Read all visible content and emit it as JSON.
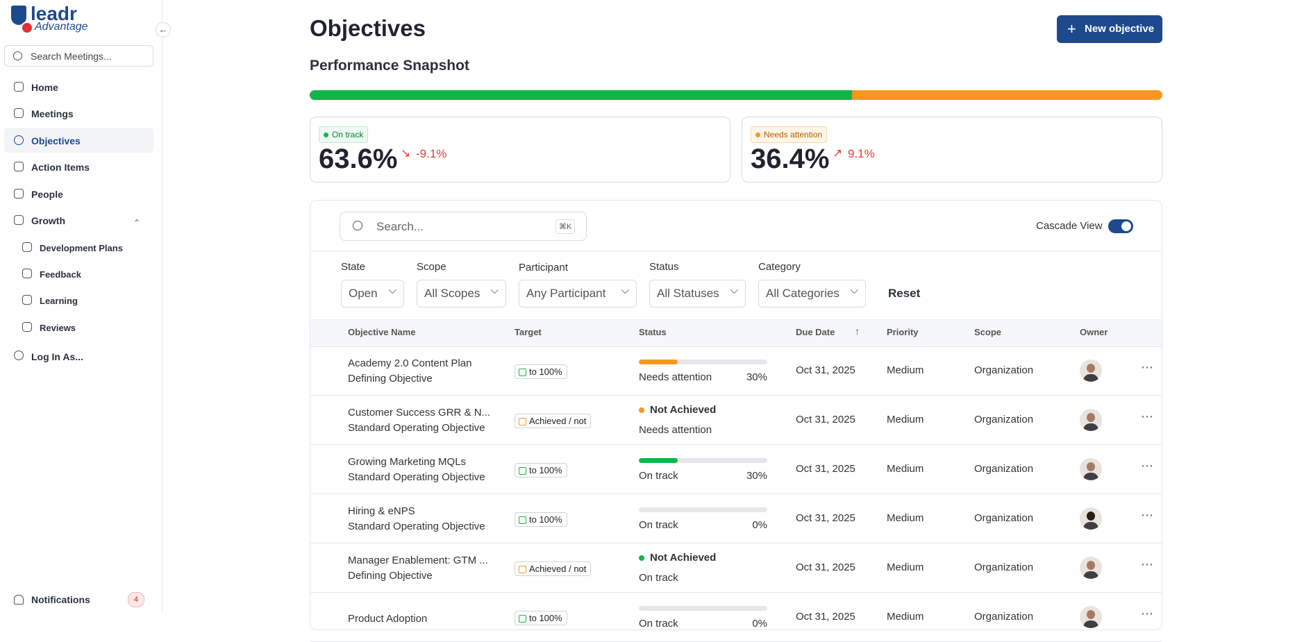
{
  "sidebar": {
    "logo": "leadr",
    "logo_sub": "Advantage",
    "search_placeholder": "Search Meetings...",
    "nav": [
      "Home",
      "Meetings",
      "Objectives",
      "Action Items",
      "People",
      "Growth"
    ],
    "growth_items": [
      "Development Plans",
      "Feedback",
      "Learning",
      "Reviews"
    ],
    "login": "Log In As...",
    "notifications": "Notifications",
    "notification_count": 4
  },
  "header": {
    "title": "Objectives",
    "new_button": "New objective"
  },
  "snapshot": {
    "title": "Performance Snapshot",
    "cards": [
      {
        "label": "On track",
        "percent": 63.6,
        "percent_label": "63.6%",
        "change": "-9.1%",
        "color": "#12b54a"
      },
      {
        "label": "Needs attention",
        "percent": 36.4,
        "percent_label": "36.4%",
        "change": "9.1%",
        "color": "#f7971e"
      }
    ]
  },
  "toolbar": {
    "search_placeholder": "Search...",
    "shortcut": "⌘K",
    "cascade": "Cascade View"
  },
  "filters": [
    {
      "label": "State",
      "value": "Open"
    },
    {
      "label": "Scope",
      "value": "All Scopes"
    },
    {
      "label": "Participant",
      "value": "Any Participant"
    },
    {
      "label": "Status",
      "value": "All Statuses"
    },
    {
      "label": "Category",
      "value": "All Categories"
    }
  ],
  "reset": "Reset",
  "table": {
    "columns": [
      "Objective Name",
      "Target",
      "Status",
      "Due Date",
      "Priority",
      "Scope",
      "Owner"
    ],
    "rows": [
      {
        "name": "Academy 2.0 Content Plan",
        "kind": "Defining Objective",
        "target": "to 100%",
        "progress": 30,
        "progress_label": "30%",
        "status": "Needs attention",
        "color": "#f7971e",
        "due": "Oct 31, 2025",
        "priority": "Medium",
        "scope": "Organization"
      },
      {
        "name": "Customer Success GRR & N...",
        "kind": "Standard Operating Objective",
        "target": "Achieved / not",
        "result": "Not Achieved",
        "status": "Needs attention",
        "color": "#f7971e",
        "due": "Oct 31, 2025",
        "priority": "Medium",
        "scope": "Organization"
      },
      {
        "name": "Growing Marketing MQLs",
        "kind": "Standard Operating Objective",
        "target": "to 100%",
        "progress": 30,
        "progress_label": "30%",
        "status": "On track",
        "color": "#12b54a",
        "due": "Oct 31, 2025",
        "priority": "Medium",
        "scope": "Organization"
      },
      {
        "name": "Hiring & eNPS",
        "kind": "Standard Operating Objective",
        "target": "to 100%",
        "progress": 0,
        "progress_label": "0%",
        "status": "On track",
        "color": "#12b54a",
        "due": "Oct 31, 2025",
        "priority": "Medium",
        "scope": "Organization"
      },
      {
        "name": "Manager Enablement: GTM ...",
        "kind": "Defining Objective",
        "target": "Achieved / not",
        "result": "Not Achieved",
        "status": "On track",
        "color": "#12b54a",
        "due": "Oct 31, 2025",
        "priority": "Medium",
        "scope": "Organization"
      },
      {
        "name": "Product Adoption",
        "target": "to 100%",
        "progress": 0,
        "progress_label": "0%",
        "status": "On track",
        "color": "#12b54a",
        "due": "Oct 31, 2025",
        "priority": "Medium",
        "scope": "Organization"
      }
    ]
  }
}
